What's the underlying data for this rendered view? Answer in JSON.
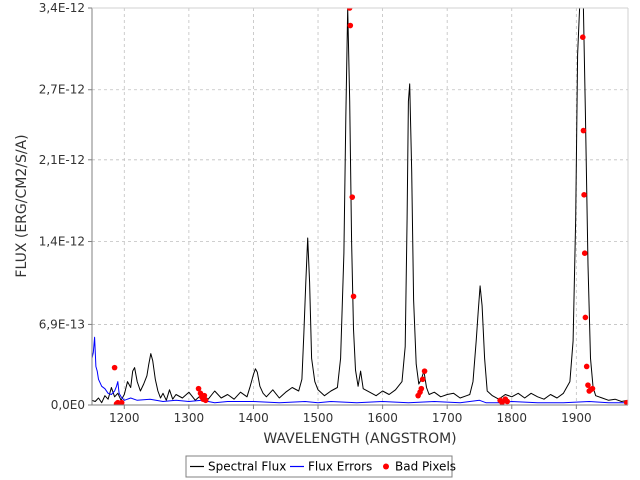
{
  "chart_data": {
    "type": "line",
    "title": "",
    "xlabel": "WAVELENGTH (ANGSTROM)",
    "ylabel": "FLUX (ERG/CM2/S/A)",
    "xlim": [
      1150,
      1980
    ],
    "ylim": [
      0,
      3.4e-12
    ],
    "x_ticks": [
      1200,
      1300,
      1400,
      1500,
      1600,
      1700,
      1800,
      1900
    ],
    "x_tick_labels": [
      "1200",
      "1300",
      "1400",
      "1500",
      "1600",
      "1700",
      "1800",
      "1900"
    ],
    "y_ticks": [
      0,
      6.9e-13,
      1.4e-12,
      2.1e-12,
      2.7e-12,
      3.4e-12
    ],
    "y_tick_labels": [
      "0,0E0",
      "6,9E-13",
      "1,4E-12",
      "2,1E-12",
      "2,7E-12",
      "3,4E-12"
    ],
    "grid": true,
    "legend_position": "bottom",
    "series": [
      {
        "name": "Spectral Flux",
        "color": "#000000",
        "x": [
          1150,
          1155,
          1160,
          1165,
          1170,
          1175,
          1180,
          1185,
          1190,
          1195,
          1200,
          1205,
          1210,
          1213,
          1216,
          1220,
          1225,
          1230,
          1235,
          1238,
          1241,
          1244,
          1248,
          1252,
          1256,
          1260,
          1265,
          1270,
          1275,
          1280,
          1290,
          1300,
          1310,
          1320,
          1330,
          1340,
          1350,
          1360,
          1370,
          1380,
          1390,
          1395,
          1400,
          1403,
          1406,
          1410,
          1415,
          1420,
          1430,
          1440,
          1450,
          1460,
          1470,
          1475,
          1478,
          1481,
          1484,
          1487,
          1490,
          1495,
          1500,
          1510,
          1520,
          1530,
          1535,
          1540,
          1543,
          1546,
          1549,
          1552,
          1555,
          1558,
          1562,
          1566,
          1570,
          1580,
          1590,
          1600,
          1610,
          1620,
          1630,
          1635,
          1638,
          1640,
          1642,
          1645,
          1648,
          1652,
          1656,
          1660,
          1664,
          1668,
          1672,
          1680,
          1690,
          1700,
          1710,
          1720,
          1730,
          1735,
          1740,
          1745,
          1748,
          1751,
          1754,
          1758,
          1762,
          1770,
          1780,
          1790,
          1800,
          1810,
          1820,
          1830,
          1840,
          1850,
          1860,
          1870,
          1880,
          1890,
          1895,
          1899,
          1902,
          1905,
          1908,
          1911,
          1914,
          1918,
          1922,
          1926,
          1930,
          1940,
          1950,
          1960,
          1970,
          1980
        ],
        "values": [
          4e-14,
          3e-14,
          6e-14,
          2e-14,
          8e-14,
          5e-14,
          1.5e-13,
          7e-14,
          1e-13,
          4e-14,
          9e-14,
          2e-13,
          1.5e-13,
          2.9e-13,
          3.2e-13,
          2e-13,
          1.2e-13,
          1.8e-13,
          2.5e-13,
          3.5e-13,
          4.4e-13,
          3.8e-13,
          2.2e-13,
          1.2e-13,
          6e-14,
          1e-13,
          4e-14,
          1.3e-13,
          5e-14,
          9e-14,
          6e-14,
          1.1e-13,
          4e-14,
          9e-14,
          5e-14,
          1.2e-13,
          6e-14,
          9e-14,
          5e-14,
          1.1e-13,
          7e-14,
          1.6e-13,
          2.6e-13,
          3.1e-13,
          2.8e-13,
          1.6e-13,
          1e-13,
          7e-14,
          1.3e-13,
          6e-14,
          1.1e-13,
          1.5e-13,
          1.2e-13,
          2.2e-13,
          6e-13,
          1.05e-12,
          1.43e-12,
          1.05e-12,
          4e-13,
          2e-13,
          1.3e-13,
          8e-14,
          1.2e-13,
          1.5e-13,
          4e-13,
          1.3e-12,
          2.45e-12,
          3.4e-12,
          2.6e-12,
          1.4e-12,
          6.5e-13,
          3e-13,
          1.6e-13,
          2.9e-13,
          1.4e-13,
          1.1e-13,
          8e-14,
          1.2e-13,
          9e-14,
          1.3e-13,
          2e-13,
          5e-13,
          1.6e-12,
          2.6e-12,
          2.75e-12,
          2e-12,
          9e-13,
          3.5e-13,
          1.8e-13,
          2.2e-13,
          2.9e-13,
          1.5e-13,
          9e-14,
          1.1e-13,
          7e-14,
          9e-14,
          1e-13,
          6e-14,
          8e-14,
          9e-14,
          2e-13,
          5.5e-13,
          8e-13,
          1.02e-12,
          8.5e-13,
          4e-13,
          1.2e-13,
          8e-14,
          5e-14,
          9e-14,
          7e-14,
          1e-13,
          6e-14,
          1e-13,
          7e-14,
          5e-14,
          9e-14,
          6e-14,
          1e-13,
          2e-13,
          5.5e-13,
          1.6e-12,
          3e-12,
          3.4e-12,
          3.4e-12,
          3.4e-12,
          2.5e-12,
          1.2e-12,
          4e-13,
          1.5e-13,
          8e-14,
          6e-14,
          4e-14,
          5e-14,
          3e-14,
          4e-14
        ]
      },
      {
        "name": "Flux Errors",
        "color": "#0000ff",
        "x": [
          1150,
          1152,
          1154,
          1156,
          1158,
          1160,
          1165,
          1170,
          1175,
          1180,
          1185,
          1188,
          1190,
          1192,
          1195,
          1200,
          1210,
          1220,
          1240,
          1260,
          1280,
          1300,
          1320,
          1340,
          1360,
          1400,
          1440,
          1480,
          1500,
          1520,
          1560,
          1600,
          1640,
          1680,
          1720,
          1750,
          1760,
          1780,
          1800,
          1840,
          1880,
          1920,
          1950,
          1980
        ],
        "values": [
          4e-13,
          4.5e-13,
          5.8e-13,
          3.3e-13,
          2.9e-13,
          2.2e-13,
          1.6e-13,
          1.4e-13,
          1e-13,
          9e-14,
          1.2e-13,
          1.6e-13,
          2e-13,
          1e-13,
          7e-14,
          4e-14,
          6e-14,
          4e-14,
          5e-14,
          3e-14,
          4e-14,
          3e-14,
          4e-14,
          2e-14,
          3e-14,
          3e-14,
          2e-14,
          3e-14,
          2e-14,
          3e-14,
          2e-14,
          3e-14,
          2e-14,
          3e-14,
          2e-14,
          4e-14,
          2e-14,
          2e-14,
          3e-14,
          2e-14,
          2e-14,
          3e-14,
          2e-14,
          2e-14
        ]
      },
      {
        "name": "Bad Pixels",
        "color": "#ff0000",
        "type": "scatter",
        "x": [
          1185,
          1188,
          1190,
          1193,
          1196,
          1315,
          1318,
          1320,
          1322,
          1324,
          1326,
          1549,
          1550,
          1553,
          1555,
          1655,
          1658,
          1660,
          1662,
          1665,
          1782,
          1785,
          1790,
          1793,
          1910,
          1911,
          1912,
          1913,
          1914,
          1916,
          1918,
          1920,
          1922,
          1925,
          1978
        ],
        "values": [
          3.2e-13,
          1e-14,
          2e-14,
          1e-14,
          2e-14,
          1.4e-13,
          1e-13,
          7e-14,
          5e-14,
          8e-14,
          4e-14,
          3.4e-12,
          3.25e-12,
          1.78e-12,
          9.3e-13,
          8e-14,
          1.1e-13,
          1.4e-13,
          2.2e-13,
          2.9e-13,
          4e-14,
          2e-14,
          5e-14,
          3e-14,
          3.15e-12,
          2.35e-12,
          1.8e-12,
          1.3e-12,
          7.5e-13,
          3.3e-13,
          1.7e-13,
          1.2e-13,
          1.3e-13,
          1.4e-13,
          2e-14
        ]
      }
    ]
  }
}
